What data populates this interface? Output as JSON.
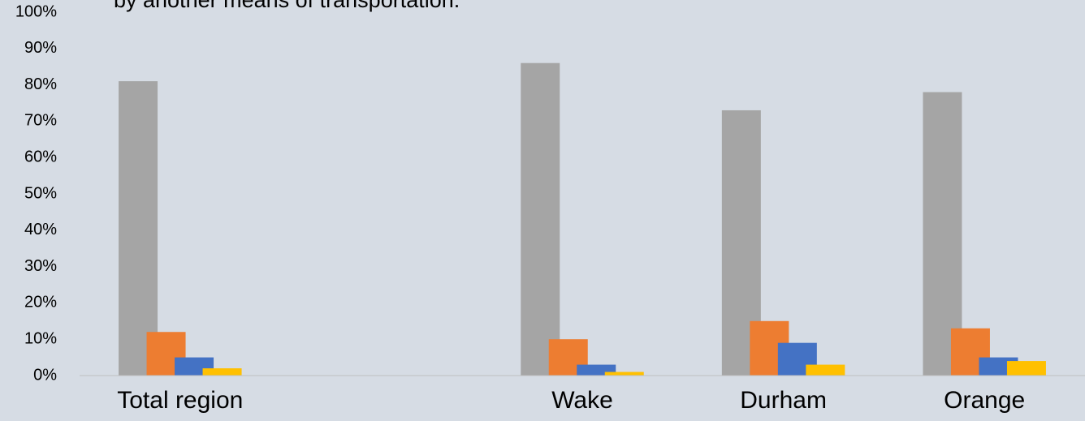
{
  "chart_data": {
    "type": "bar",
    "title": "by another means of transportation.",
    "categories": [
      "Total region",
      null,
      "Wake",
      "Durham",
      "Orange"
    ],
    "series": [
      {
        "color": "#a5a5a5",
        "values": [
          81,
          null,
          86,
          73,
          78
        ]
      },
      {
        "color": "#ed7d31",
        "values": [
          12,
          null,
          10,
          15,
          13
        ]
      },
      {
        "color": "#4472c4",
        "values": [
          5,
          null,
          3,
          9,
          5
        ]
      },
      {
        "color": "#ffc000",
        "values": [
          2,
          null,
          1,
          3,
          4
        ]
      }
    ],
    "ylim": [
      0,
      100
    ],
    "yticks": [
      {
        "value": 0,
        "label": "0%"
      },
      {
        "value": 10,
        "label": "10%"
      },
      {
        "value": 20,
        "label": "20%"
      },
      {
        "value": 30,
        "label": "30%"
      },
      {
        "value": 40,
        "label": "40%"
      },
      {
        "value": 50,
        "label": "50%"
      },
      {
        "value": 60,
        "label": "60%"
      },
      {
        "value": 70,
        "label": "70%"
      },
      {
        "value": 80,
        "label": "80%"
      },
      {
        "value": 90,
        "label": "90%"
      },
      {
        "value": 100,
        "label": "100%"
      }
    ],
    "grid": false
  }
}
